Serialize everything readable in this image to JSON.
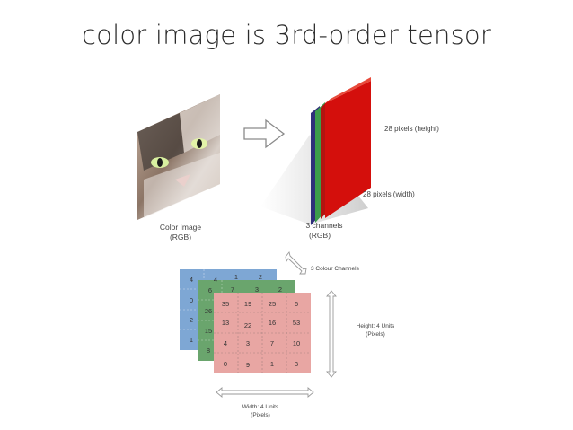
{
  "slide": {
    "title": "color image is 3rd-order tensor"
  },
  "top_figure": {
    "left_caption_line1": "Color Image",
    "left_caption_line2": "(RGB)",
    "right_caption_line1": "3 channels",
    "right_caption_line2": "(RGB)",
    "height_label": "28 pixels (height)",
    "width_label": "28 pixels (width)",
    "channel_colors": [
      "#d40f0c",
      "#3c9d4a",
      "#2f2f7a"
    ]
  },
  "bottom_figure": {
    "channels_label": "3 Colour Channels",
    "height_label_line1": "Height: 4 Units",
    "height_label_line2": "(Pixels)",
    "width_label_line1": "Width: 4 Units",
    "width_label_line2": "(Pixels)",
    "layer_colors": {
      "blue": "#7ea7d4",
      "green": "#6aa56d",
      "red": "#e8a6a3"
    },
    "blue_col": [
      "4",
      "0",
      "2",
      "1"
    ],
    "blue_top": [
      "4",
      "1",
      "2"
    ],
    "green_col": [
      "6",
      "26",
      "15",
      "8"
    ],
    "green_top": [
      "6",
      "7",
      "3",
      "2"
    ],
    "red_grid": [
      [
        "35",
        "19",
        "25",
        "6"
      ],
      [
        "13",
        "22",
        "16",
        "53"
      ],
      [
        "4",
        "3",
        "7",
        "10"
      ],
      [
        "0",
        "9",
        "1",
        "3"
      ]
    ]
  }
}
